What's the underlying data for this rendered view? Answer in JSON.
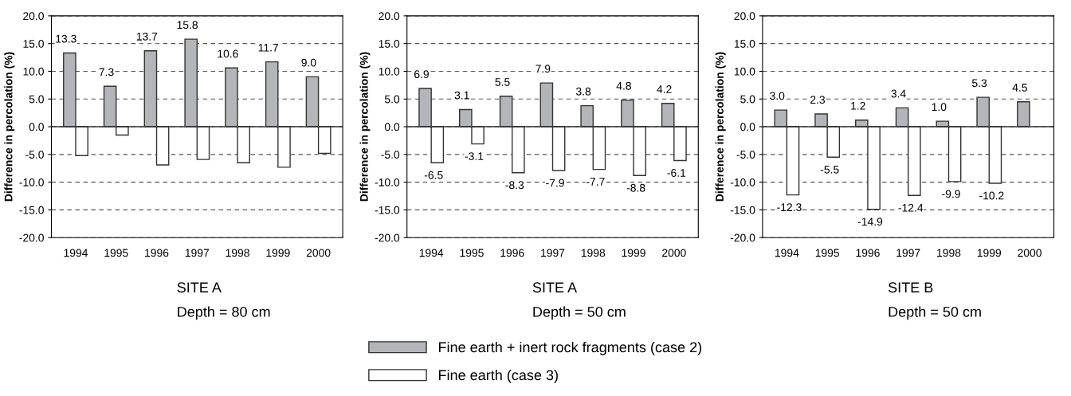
{
  "chart_data": [
    {
      "type": "bar",
      "title": "SITE A",
      "subtitle": "Depth = 80 cm",
      "ylabel": "Difference in percolation (%)",
      "categories": [
        "1994",
        "1995",
        "1996",
        "1997",
        "1998",
        "1999",
        "2000"
      ],
      "series": [
        {
          "name": "Fine earth + inert rock fragments (case 2)",
          "color": "#b4b5b8",
          "values": [
            13.3,
            7.3,
            13.7,
            15.8,
            10.6,
            11.7,
            9.0
          ],
          "value_labels": [
            "13.3",
            "7.3",
            "13.7",
            "15.8",
            "10.6",
            "11.7",
            "9.0"
          ]
        },
        {
          "name": "Fine earth (case 3)",
          "color": "#ffffff",
          "values": [
            -5.2,
            -1.5,
            -6.9,
            -5.9,
            -6.5,
            -7.3,
            -4.8
          ],
          "value_labels": [
            null,
            null,
            null,
            null,
            null,
            null,
            null
          ]
        }
      ],
      "ylim": [
        -20,
        20
      ],
      "yticks": [
        {
          "value": -20,
          "label": "-20.0"
        },
        {
          "value": -15,
          "label": "-15.0"
        },
        {
          "value": -10,
          "label": "-10.0"
        },
        {
          "value": -5,
          "label": "-5.0"
        },
        {
          "value": 0,
          "label": "0.0"
        },
        {
          "value": 5,
          "label": "5.0"
        },
        {
          "value": 10,
          "label": "10.0"
        },
        {
          "value": 15,
          "label": "15.0"
        },
        {
          "value": 20,
          "label": "20.0"
        }
      ],
      "grid": "y",
      "legend": "bottom"
    },
    {
      "type": "bar",
      "title": "SITE A",
      "subtitle": "Depth = 50 cm",
      "ylabel": "Difference in percolation (%)",
      "categories": [
        "1994",
        "1995",
        "1996",
        "1997",
        "1998",
        "1999",
        "2000"
      ],
      "series": [
        {
          "color": "#b4b5b8",
          "values": [
            6.9,
            3.1,
            5.5,
            7.9,
            3.8,
            4.8,
            4.2
          ],
          "value_labels": [
            "6.9",
            "3.1",
            "5.5",
            "7.9",
            "3.8",
            "4.8",
            "4.2"
          ]
        },
        {
          "color": "#ffffff",
          "values": [
            -6.5,
            -3.1,
            -8.3,
            -7.9,
            -7.7,
            -8.8,
            -6.1
          ],
          "value_labels": [
            "-6.5",
            "-3.1",
            "-8.3",
            "-7.9",
            "-7.7",
            "-8.8",
            "-6.1"
          ]
        }
      ],
      "ylim": [
        -20,
        20
      ],
      "yticks": [
        {
          "value": -20,
          "label": "-20.0"
        },
        {
          "value": -15,
          "label": "-15.0"
        },
        {
          "value": -10,
          "label": "-10.0"
        },
        {
          "value": -5,
          "label": "-5.0"
        },
        {
          "value": 0,
          "label": "0.0"
        },
        {
          "value": 5,
          "label": "5.0"
        },
        {
          "value": 10,
          "label": "10.0"
        },
        {
          "value": 15,
          "label": "15.0"
        },
        {
          "value": 20,
          "label": "20.0"
        }
      ],
      "grid": "y"
    },
    {
      "type": "bar",
      "title": "SITE B",
      "subtitle": "Depth = 50 cm",
      "ylabel": "Difference in percolation (%)",
      "categories": [
        "1994",
        "1995",
        "1996",
        "1997",
        "1998",
        "1999",
        "2000"
      ],
      "series": [
        {
          "color": "#b4b5b8",
          "values": [
            3.0,
            2.3,
            1.2,
            3.4,
            1.0,
            5.3,
            4.5
          ],
          "value_labels": [
            "3.0",
            "2.3",
            "1.2",
            "3.4",
            "1.0",
            "5.3",
            "4.5"
          ]
        },
        {
          "color": "#ffffff",
          "values": [
            -12.3,
            -5.5,
            -14.9,
            -12.4,
            -9.9,
            -10.2,
            null
          ],
          "value_labels": [
            "-12.3",
            "-5.5",
            "-14.9",
            "-12.4",
            "-9.9",
            "-10.2",
            null
          ]
        }
      ],
      "ylim": [
        -20,
        20
      ],
      "yticks": [
        {
          "value": -20,
          "label": "-20.0"
        },
        {
          "value": -15,
          "label": "-15.0"
        },
        {
          "value": -10,
          "label": "-10.0"
        },
        {
          "value": -5,
          "label": "-5.0"
        },
        {
          "value": 0,
          "label": "0.0"
        },
        {
          "value": 5,
          "label": "5.0"
        },
        {
          "value": 10,
          "label": "10.0"
        },
        {
          "value": 15,
          "label": "15.0"
        },
        {
          "value": 20,
          "label": "20.0"
        }
      ],
      "grid": "y"
    }
  ]
}
